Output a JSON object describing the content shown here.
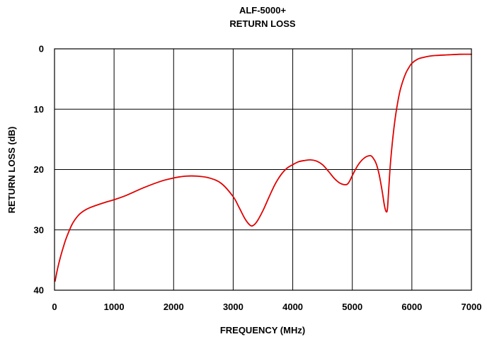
{
  "chart_data": {
    "type": "line",
    "title_lines": [
      "ALF-5000+",
      "RETURN LOSS"
    ],
    "xlabel": "FREQUENCY (MHz)",
    "ylabel": "RETURN LOSS (dB)",
    "xlim": [
      0,
      7000
    ],
    "ylim": [
      0,
      40
    ],
    "y_inverted": true,
    "x_ticks": [
      0,
      1000,
      2000,
      3000,
      4000,
      5000,
      6000,
      7000
    ],
    "y_ticks": [
      0,
      10,
      20,
      30,
      40
    ],
    "grid": true,
    "series": [
      {
        "color": "#e00000",
        "x": [
          10,
          50,
          100,
          150,
          200,
          300,
          400,
          500,
          600,
          800,
          1000,
          1200,
          1500,
          1800,
          2000,
          2200,
          2400,
          2600,
          2800,
          3000,
          3100,
          3200,
          3280,
          3330,
          3400,
          3500,
          3600,
          3700,
          3800,
          3900,
          4000,
          4100,
          4200,
          4300,
          4400,
          4500,
          4600,
          4700,
          4800,
          4900,
          4950,
          5000,
          5100,
          5200,
          5300,
          5350,
          5400,
          5450,
          5500,
          5540,
          5570,
          5590,
          5610,
          5640,
          5680,
          5720,
          5760,
          5800,
          5850,
          5900,
          5950,
          6000,
          6100,
          6200,
          6300,
          6400,
          6600,
          6800,
          7000
        ],
        "values": [
          38.5,
          36.5,
          34.5,
          32.8,
          31.3,
          29.0,
          27.6,
          26.8,
          26.3,
          25.6,
          25.0,
          24.3,
          23.0,
          21.9,
          21.4,
          21.1,
          21.1,
          21.4,
          22.3,
          24.5,
          26.3,
          28.2,
          29.2,
          29.3,
          28.6,
          26.8,
          24.6,
          22.5,
          20.9,
          19.8,
          19.2,
          18.7,
          18.5,
          18.4,
          18.6,
          19.2,
          20.3,
          21.5,
          22.3,
          22.5,
          22.0,
          21.0,
          19.2,
          18.1,
          17.7,
          18.1,
          19.0,
          20.8,
          23.5,
          26.0,
          27.0,
          26.5,
          23.5,
          19.0,
          14.8,
          11.5,
          9.0,
          7.0,
          5.3,
          4.0,
          3.1,
          2.4,
          1.7,
          1.4,
          1.2,
          1.1,
          1.0,
          0.9,
          0.9
        ]
      }
    ]
  }
}
